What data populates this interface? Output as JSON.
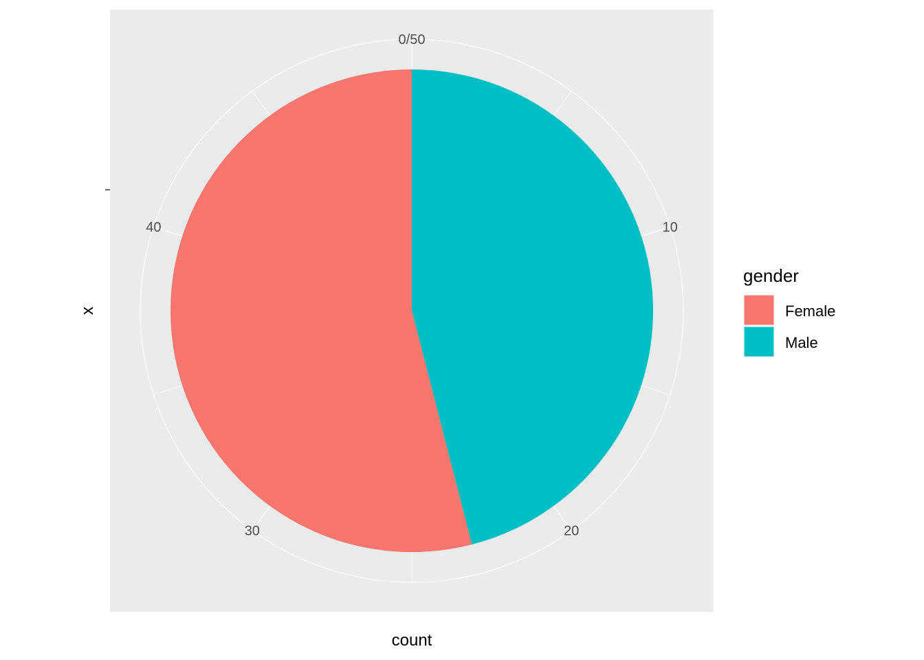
{
  "chart_data": {
    "type": "pie",
    "coord": "polar",
    "categories": [
      "Female",
      "Male"
    ],
    "values": [
      27,
      23
    ],
    "colors": {
      "Female": "#F8766D",
      "Male": "#00BFC4"
    },
    "xlabel": "count",
    "ylabel": "x",
    "theta_range": [
      0,
      50
    ],
    "theta_ticks": [
      "0/50",
      "10",
      "20",
      "30",
      "40"
    ],
    "theta_tick_values": [
      0,
      10,
      20,
      30,
      40
    ],
    "grid": true,
    "panel_background": "#EBEBEB",
    "legend": {
      "title": "gender",
      "position": "right",
      "entries": [
        "Female",
        "Male"
      ]
    }
  }
}
